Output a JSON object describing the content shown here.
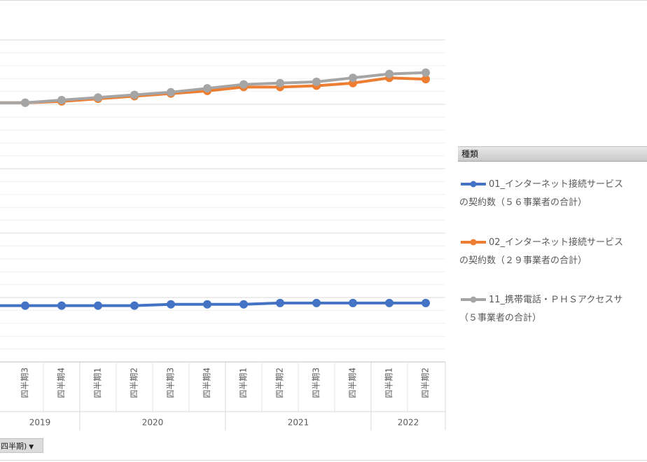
{
  "chart_data": {
    "type": "line",
    "categories": [
      {
        "quarter": "四半期3",
        "year": "2019"
      },
      {
        "quarter": "四半期4",
        "year": "2019"
      },
      {
        "quarter": "四半期1",
        "year": "2020"
      },
      {
        "quarter": "四半期2",
        "year": "2020"
      },
      {
        "quarter": "四半期3",
        "year": "2020"
      },
      {
        "quarter": "四半期4",
        "year": "2020"
      },
      {
        "quarter": "四半期1",
        "year": "2021"
      },
      {
        "quarter": "四半期2",
        "year": "2021"
      },
      {
        "quarter": "四半期3",
        "year": "2021"
      },
      {
        "quarter": "四半期4",
        "year": "2021"
      },
      {
        "quarter": "四半期1",
        "year": "2022"
      },
      {
        "quarter": "四半期2",
        "year": "2022"
      }
    ],
    "years": [
      "2019",
      "2020",
      "2021",
      "2022"
    ],
    "ylim": [
      0,
      12.3
    ],
    "gridlines": "major-and-minor",
    "series": [
      {
        "name": "01_インターネット接続サービスの契約数（５６事業者の合計）",
        "color": "#4472c4",
        "values": [
          2.15,
          2.15,
          2.15,
          2.15,
          2.2,
          2.2,
          2.2,
          2.25,
          2.25,
          2.25,
          2.25,
          2.25
        ]
      },
      {
        "name": "02_インターネット接続サービスの契約数（２９事業者の合計）",
        "color": "#ed7d31",
        "values": [
          9.9,
          9.95,
          10.05,
          10.15,
          10.25,
          10.35,
          10.5,
          10.5,
          10.55,
          10.65,
          10.85,
          10.8
        ]
      },
      {
        "name": "11_携帯電話・ＰＨＳアクセスサービス（５事業者の合計）",
        "color": "#a5a5a5",
        "values": [
          9.9,
          10.0,
          10.1,
          10.2,
          10.3,
          10.45,
          10.6,
          10.65,
          10.7,
          10.85,
          11.0,
          11.05
        ]
      }
    ]
  },
  "legend": {
    "header": "種類",
    "items": [
      {
        "line1": "01_インターネット接続サービス",
        "line2": "の契約数（５６事業者の合計）"
      },
      {
        "line1": "02_インターネット接続サービス",
        "line2": "の契約数（２９事業者の合計）"
      },
      {
        "line1": "11_携帯電話・ＰＨＳアクセスサ",
        "line2": "（５事業者の合計）"
      }
    ]
  },
  "field_button": {
    "label": "四半期)",
    "arrow": "▼"
  }
}
